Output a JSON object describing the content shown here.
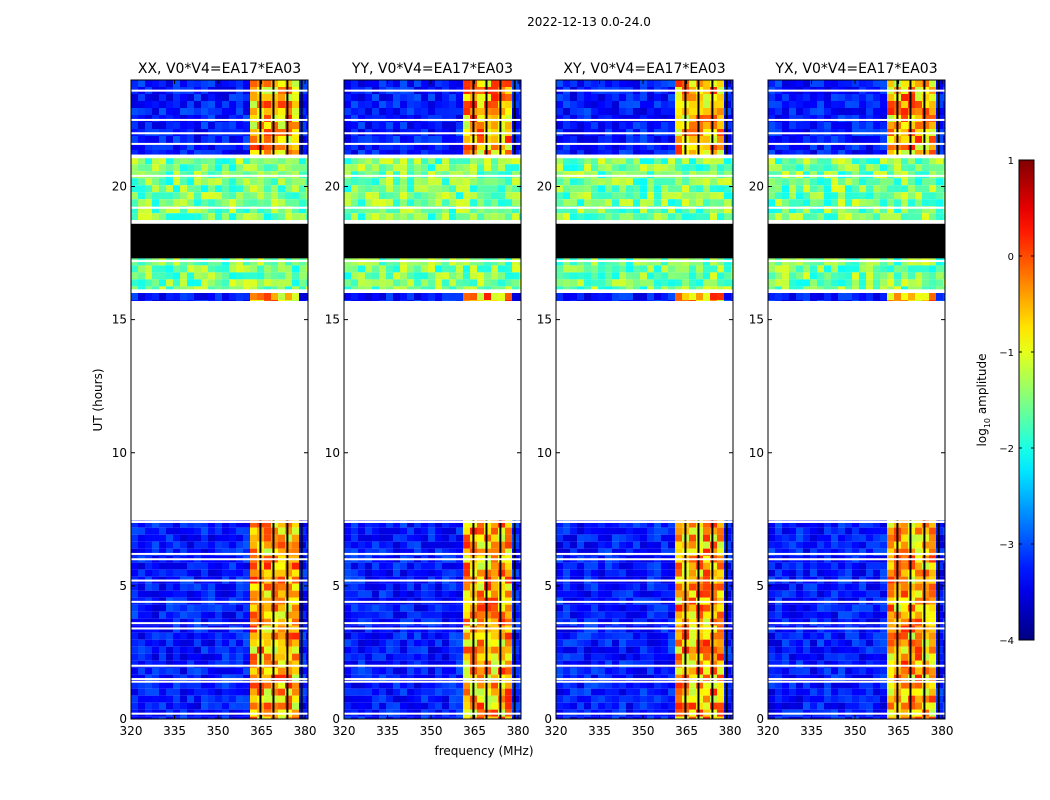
{
  "figure": {
    "suptitle": "2022-12-13 0.0-24.0"
  },
  "chart_data": {
    "type": "heatmap",
    "xlabel": "frequency (MHz)",
    "ylabel": "UT (hours)",
    "xlim": [
      320,
      381
    ],
    "ylim": [
      0,
      24
    ],
    "xticks": [
      320,
      335,
      350,
      365,
      380
    ],
    "yticks": [
      0,
      5,
      10,
      15,
      20
    ],
    "panels": [
      {
        "title": "XX, V0*V4=EA17*EA03"
      },
      {
        "title": "YY, V0*V4=EA17*EA03"
      },
      {
        "title": "XY, V0*V4=EA17*EA03"
      },
      {
        "title": "YX, V0*V4=EA17*EA03"
      }
    ],
    "colorbar": {
      "label": "log10 amplitude",
      "label_base": "log",
      "label_sub": "10",
      "label_rest": " amplitude",
      "range": [
        -4,
        1
      ],
      "ticks": [
        -4,
        -3,
        -2,
        -1,
        0,
        1
      ],
      "tick_labels": [
        "−4",
        "−3",
        "−2",
        "−1",
        "0",
        "1"
      ],
      "colormap": "jet"
    },
    "data_bands": [
      {
        "ut_start": 0.0,
        "ut_end": 7.45,
        "state": "data"
      },
      {
        "ut_start": 7.45,
        "ut_end": 15.7,
        "state": "no data"
      },
      {
        "ut_start": 15.7,
        "ut_end": 16.0,
        "state": "data"
      },
      {
        "ut_start": 16.1,
        "ut_end": 17.3,
        "state": "noise"
      },
      {
        "ut_start": 17.3,
        "ut_end": 18.6,
        "state": "zero/flagged"
      },
      {
        "ut_start": 18.7,
        "ut_end": 21.1,
        "state": "noise"
      },
      {
        "ut_start": 21.2,
        "ut_end": 24.0,
        "state": "data"
      }
    ],
    "bright_band_mhz": [
      360,
      379
    ],
    "colors": {
      "background": "#ffffff",
      "zero": "#000000",
      "low": "#0a2ad0",
      "high": "#ff5000"
    }
  }
}
